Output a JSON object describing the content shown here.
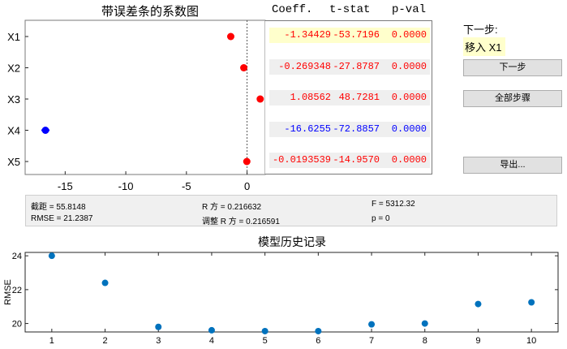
{
  "coef_plot": {
    "title": "带误差条的系数图",
    "rows": [
      "X1",
      "X2",
      "X3",
      "X4",
      "X5"
    ],
    "x_ticks": [
      "-15",
      "-10",
      "-5",
      "0"
    ],
    "x_tick_values": [
      -15,
      -10,
      -5,
      0
    ],
    "xlim": [
      -18.3,
      1.5
    ],
    "points": [
      {
        "label": "X1",
        "value": -1.34429,
        "color": "#ff0000"
      },
      {
        "label": "X2",
        "value": -0.269348,
        "color": "#ff0000"
      },
      {
        "label": "X3",
        "value": 1.08562,
        "color": "#ff0000"
      },
      {
        "label": "X4",
        "value": -16.6255,
        "color": "#0000ff"
      },
      {
        "label": "X5",
        "value": -0.0193539,
        "color": "#ff0000"
      }
    ]
  },
  "table": {
    "headers": [
      "Coeff.",
      "t-stat",
      "p-val"
    ],
    "rows": [
      {
        "coeff": "-1.34429",
        "tstat": "-53.7196",
        "pval": "0.0000",
        "color": "#ff0000",
        "bg": "#ffffcc"
      },
      {
        "coeff": "-0.269348",
        "tstat": "-27.8787",
        "pval": "0.0000",
        "color": "#ff0000",
        "bg": "#efefef"
      },
      {
        "coeff": "1.08562",
        "tstat": "48.7281",
        "pval": "0.0000",
        "color": "#ff0000",
        "bg": "#efefef"
      },
      {
        "coeff": "-16.6255",
        "tstat": "-72.8857",
        "pval": "0.0000",
        "color": "#0000ff",
        "bg": "#efefef"
      },
      {
        "coeff": "-0.0193539",
        "tstat": "-14.9570",
        "pval": "0.0000",
        "color": "#ff0000",
        "bg": "#efefef"
      }
    ]
  },
  "controls": {
    "next_step_label": "下一步:",
    "next_step_value": "移入 X1",
    "next_button": "下一步",
    "all_steps_button": "全部步骤",
    "export_button": "导出..."
  },
  "stats": {
    "intercept": "截距 = 55.8148",
    "rmse": "RMSE = 21.2387",
    "rsq": "R 方 = 0.216632",
    "adj_rsq": "调整 R 方 = 0.216591",
    "f": "F = 5312.32",
    "p": "p = 0"
  },
  "history_plot": {
    "title": "模型历史记录",
    "ylabel": "RMSE",
    "x_ticks": [
      "1",
      "2",
      "3",
      "4",
      "5",
      "6",
      "7",
      "8",
      "9",
      "10"
    ],
    "y_ticks": [
      "20",
      "22",
      "24"
    ],
    "y_tick_values": [
      20,
      22,
      24
    ],
    "xlim": [
      0.5,
      10.5
    ],
    "ylim": [
      19.5,
      24.2
    ],
    "point_color": "#0072bd"
  },
  "chart_data": {
    "type": "scatter",
    "title": "模型历史记录",
    "xlabel": "",
    "ylabel": "RMSE",
    "x": [
      1,
      2,
      3,
      4,
      5,
      6,
      7,
      8,
      9,
      10
    ],
    "values": [
      24.0,
      22.4,
      19.8,
      19.6,
      19.55,
      19.55,
      19.95,
      20.0,
      21.15,
      21.25
    ],
    "xlim": [
      0.5,
      10.5
    ],
    "ylim": [
      19.5,
      24.2
    ],
    "grid": false
  }
}
